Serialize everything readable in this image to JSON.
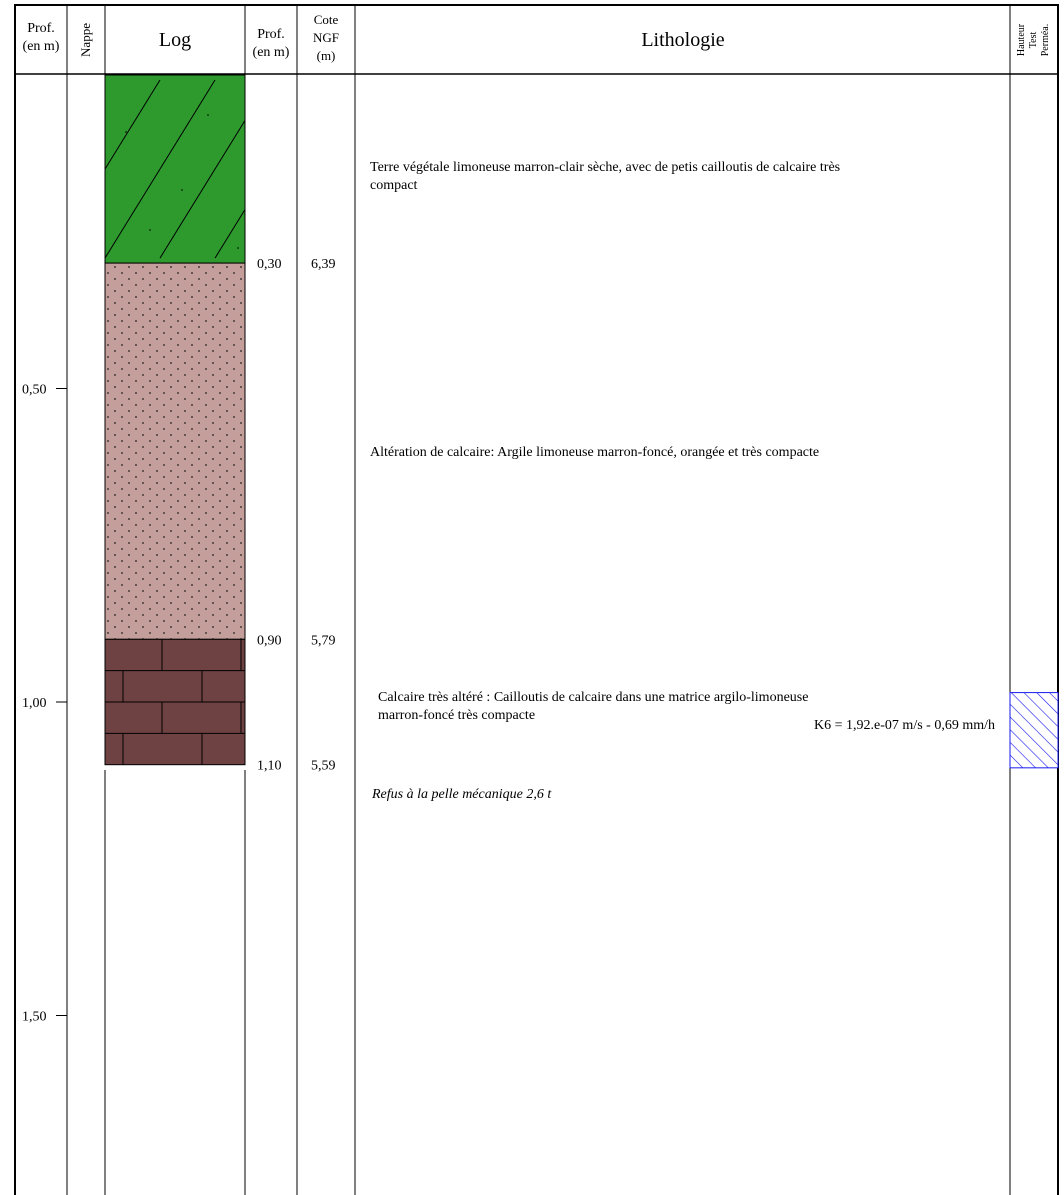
{
  "headers": {
    "prof1": [
      "Prof.",
      "(en m)"
    ],
    "nappe": "Nappe",
    "log": "Log",
    "prof2": [
      "Prof.",
      "(en m)"
    ],
    "cote": [
      "Cote",
      "NGF",
      "(m)"
    ],
    "lithologie": "Lithologie",
    "hauteur": [
      "Hauteur",
      "Test",
      "Perméa."
    ]
  },
  "depth_scale": {
    "ticks": [
      {
        "depth": 0.5,
        "label": "0,50"
      },
      {
        "depth": 1.0,
        "label": "1,00"
      },
      {
        "depth": 1.5,
        "label": "1,50"
      }
    ]
  },
  "layers": [
    {
      "top": 0.0,
      "bottom": 0.3,
      "pattern": "topsoil",
      "color": "#2e9a2e",
      "description": [
        "Terre végétale limoneuse marron-clair sèche, avec de petis cailloutis de calcaire très",
        "compact"
      ]
    },
    {
      "top": 0.3,
      "bottom": 0.9,
      "pattern": "dotted-clay",
      "color": "#c49e9a",
      "description": [
        "Altération de calcaire: Argile limoneuse marron-foncé, orangée et très compacte"
      ]
    },
    {
      "top": 0.9,
      "bottom": 1.1,
      "pattern": "limestone-bricks",
      "color": "#6e4242",
      "description": [
        "Calcaire très altéré : Cailloutis de calcaire dans une matrice argilo-limoneuse",
        "marron-foncé très compacte"
      ]
    }
  ],
  "boundaries": [
    {
      "depth": 0.3,
      "prof": "0,30",
      "cote": "6,39"
    },
    {
      "depth": 0.9,
      "prof": "0,90",
      "cote": "5,79"
    },
    {
      "depth": 1.1,
      "prof": "1,10",
      "cote": "5,59"
    }
  ],
  "refusal_note": "Refus à la pelle mécanique 2,6 t",
  "permeability_test": {
    "label": "K6 = 1,92.e-07 m/s - 0,69 mm/h",
    "color": "#1a1aee",
    "top": 0.985,
    "bottom": 1.105
  }
}
